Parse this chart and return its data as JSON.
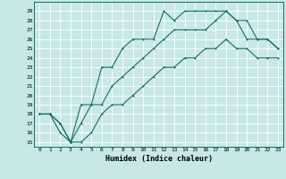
{
  "xlabel": "Humidex (Indice chaleur)",
  "ylabel": "",
  "x_ticks": [
    0,
    1,
    2,
    3,
    4,
    5,
    6,
    7,
    8,
    9,
    10,
    11,
    12,
    13,
    14,
    15,
    16,
    17,
    18,
    19,
    20,
    21,
    22,
    23
  ],
  "y_ticks": [
    15,
    16,
    17,
    18,
    19,
    20,
    21,
    22,
    23,
    24,
    25,
    26,
    27,
    28,
    29
  ],
  "ylim": [
    14.5,
    30
  ],
  "xlim": [
    -0.5,
    23.5
  ],
  "bg_color": "#c8e8e8",
  "line_color": "#1a6b6b",
  "grid_color": "#ffffff",
  "line1_x": [
    0,
    1,
    2,
    3,
    4,
    5,
    6,
    7,
    8,
    9,
    10,
    11,
    12,
    13,
    14,
    15,
    16,
    17,
    18,
    19,
    20,
    21,
    22,
    23
  ],
  "line1_y": [
    18,
    18,
    17,
    15,
    19,
    19,
    23,
    23,
    25,
    26,
    26,
    26,
    29,
    28,
    29,
    29,
    29,
    29,
    29,
    28,
    28,
    26,
    26,
    25
  ],
  "line2_x": [
    0,
    1,
    2,
    3,
    4,
    5,
    6,
    7,
    8,
    9,
    10,
    11,
    12,
    13,
    14,
    15,
    16,
    17,
    18,
    19,
    20,
    21,
    22,
    23
  ],
  "line2_y": [
    18,
    18,
    17,
    15,
    17,
    19,
    19,
    21,
    22,
    23,
    24,
    25,
    26,
    27,
    27,
    27,
    27,
    28,
    29,
    28,
    26,
    26,
    26,
    25
  ],
  "line3_x": [
    0,
    1,
    2,
    3,
    4,
    5,
    6,
    7,
    8,
    9,
    10,
    11,
    12,
    13,
    14,
    15,
    16,
    17,
    18,
    19,
    20,
    21,
    22,
    23
  ],
  "line3_y": [
    18,
    18,
    16,
    15,
    15,
    16,
    18,
    19,
    19,
    20,
    21,
    22,
    23,
    23,
    24,
    24,
    25,
    25,
    26,
    25,
    25,
    24,
    24,
    24
  ]
}
